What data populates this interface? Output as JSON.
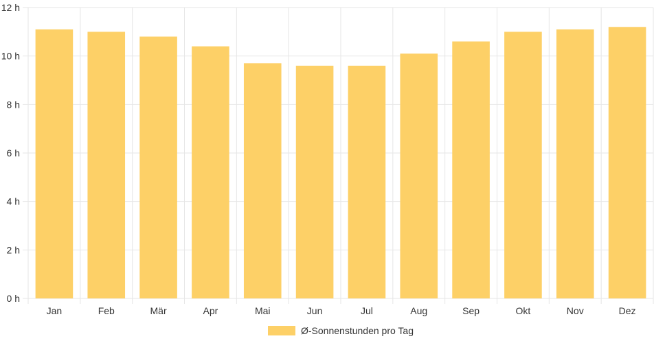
{
  "chart_data": {
    "type": "bar",
    "categories": [
      "Jan",
      "Feb",
      "Mär",
      "Apr",
      "Mai",
      "Jun",
      "Jul",
      "Aug",
      "Sep",
      "Okt",
      "Nov",
      "Dez"
    ],
    "series": [
      {
        "name": "Ø-Sonnenstunden pro Tag",
        "values": [
          11.1,
          11.0,
          10.8,
          10.4,
          9.7,
          9.6,
          9.6,
          10.1,
          10.6,
          11.0,
          11.1,
          11.2
        ]
      }
    ],
    "y_ticks": [
      "0 h",
      "2 h",
      "4 h",
      "6 h",
      "8 h",
      "10 h",
      "12 h"
    ],
    "ylim": [
      0,
      12
    ],
    "grid": true,
    "legend_position": "bottom",
    "colors": {
      "bar": "#fdd067",
      "grid": "#e6e6e6",
      "text": "#333333"
    }
  }
}
